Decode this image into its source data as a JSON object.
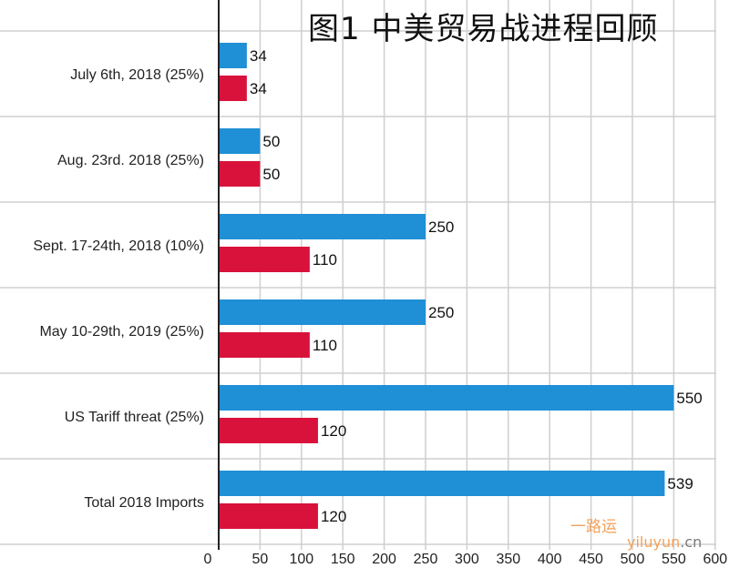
{
  "title": "图1  中美贸易战进程回顾",
  "watermark": {
    "cn": "一路运",
    "site": "yiluyun",
    "tld": ".cn"
  },
  "colors": {
    "blue": "#1f8fd6",
    "red": "#d9123c",
    "grid": "#cfcfcf",
    "axis": "#222222"
  },
  "chart_data": {
    "type": "bar",
    "orientation": "horizontal",
    "title": "图1  中美贸易战进程回顾",
    "categories": [
      "July 6th, 2018 (25%)",
      "Aug. 23rd. 2018 (25%)",
      "Sept. 17-24th, 2018 (10%)",
      "May 10-29th, 2019 (25%)",
      "US Tariff threat (25%)",
      "Total 2018 Imports"
    ],
    "series": [
      {
        "color": "#1f8fd6",
        "values": [
          34,
          50,
          250,
          250,
          550,
          539
        ]
      },
      {
        "color": "#d9123c",
        "values": [
          34,
          50,
          110,
          110,
          120,
          120
        ]
      }
    ],
    "xlim": [
      0,
      600
    ],
    "xticks": [
      0,
      50,
      100,
      150,
      200,
      250,
      300,
      350,
      400,
      450,
      500,
      550,
      600
    ],
    "grid": true,
    "data_labels": true,
    "legend": "none"
  }
}
